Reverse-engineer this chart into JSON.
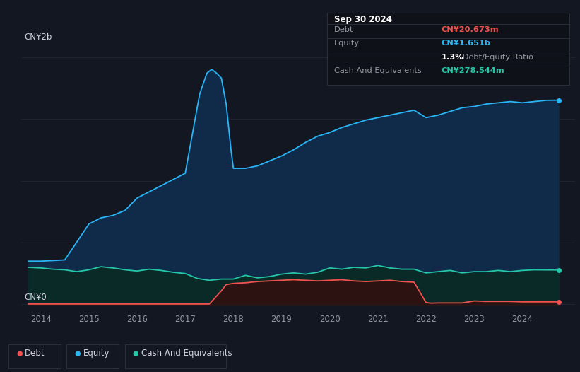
{
  "background_color": "#131722",
  "plot_bg_color": "#131722",
  "ylabel_top": "CN¥2b",
  "ylabel_zero": "CN¥0",
  "x_ticks": [
    2014,
    2015,
    2016,
    2017,
    2018,
    2019,
    2020,
    2021,
    2022,
    2023,
    2024
  ],
  "legend_items": [
    "Debt",
    "Equity",
    "Cash And Equivalents"
  ],
  "legend_colors": [
    "#ef5350",
    "#29b6f6",
    "#26c6a8"
  ],
  "info_box": {
    "title": "Sep 30 2024",
    "rows": [
      {
        "label": "Debt",
        "value": "CN¥20.673m",
        "value_color": "#ef5350"
      },
      {
        "label": "Equity",
        "value": "CN¥1.651b",
        "value_color": "#29b6f6"
      },
      {
        "label": "",
        "value_white": "1.3%",
        "value_gray": " Debt/Equity Ratio"
      },
      {
        "label": "Cash And Equivalents",
        "value": "CN¥278.544m",
        "value_color": "#26c6a8"
      }
    ]
  },
  "equity_color": "#29b6f6",
  "equity_fill": "#102a4a",
  "debt_color": "#ef5350",
  "debt_fill": "#2d1212",
  "cash_color": "#26c6a8",
  "cash_fill": "#0a2a28",
  "grid_color": "#232733",
  "text_color": "#9598a1",
  "ylim_min": -50000000,
  "ylim_max": 2100000000,
  "equity_x": [
    2013.75,
    2014.0,
    2014.5,
    2015.0,
    2015.25,
    2015.5,
    2015.75,
    2016.0,
    2016.25,
    2016.5,
    2016.75,
    2017.0,
    2017.15,
    2017.3,
    2017.45,
    2017.55,
    2017.65,
    2017.75,
    2017.85,
    2017.95,
    2018.0,
    2018.25,
    2018.5,
    2018.75,
    2019.0,
    2019.25,
    2019.5,
    2019.75,
    2020.0,
    2020.25,
    2020.5,
    2020.75,
    2021.0,
    2021.25,
    2021.5,
    2021.75,
    2022.0,
    2022.25,
    2022.5,
    2022.75,
    2023.0,
    2023.25,
    2023.5,
    2023.75,
    2024.0,
    2024.25,
    2024.5,
    2024.75
  ],
  "equity_y": [
    350000000,
    350000000,
    360000000,
    650000000,
    700000000,
    720000000,
    760000000,
    860000000,
    910000000,
    960000000,
    1010000000,
    1060000000,
    1380000000,
    1700000000,
    1870000000,
    1900000000,
    1870000000,
    1830000000,
    1620000000,
    1250000000,
    1100000000,
    1100000000,
    1120000000,
    1160000000,
    1200000000,
    1250000000,
    1310000000,
    1360000000,
    1390000000,
    1430000000,
    1460000000,
    1490000000,
    1510000000,
    1530000000,
    1550000000,
    1570000000,
    1510000000,
    1530000000,
    1560000000,
    1590000000,
    1600000000,
    1620000000,
    1630000000,
    1640000000,
    1630000000,
    1640000000,
    1650000000,
    1651000000
  ],
  "debt_x": [
    2013.75,
    2014.0,
    2014.5,
    2015.0,
    2015.5,
    2016.0,
    2016.5,
    2017.0,
    2017.5,
    2017.75,
    2017.85,
    2018.0,
    2018.25,
    2018.5,
    2018.75,
    2019.0,
    2019.25,
    2019.5,
    2019.75,
    2020.0,
    2020.25,
    2020.5,
    2020.75,
    2021.0,
    2021.25,
    2021.5,
    2021.75,
    2022.0,
    2022.1,
    2022.25,
    2022.5,
    2022.75,
    2023.0,
    2023.25,
    2023.5,
    2023.75,
    2024.0,
    2024.25,
    2024.5,
    2024.75
  ],
  "debt_y": [
    3000000,
    3000000,
    3000000,
    3000000,
    3000000,
    3000000,
    3000000,
    3000000,
    3000000,
    110000000,
    160000000,
    170000000,
    175000000,
    185000000,
    190000000,
    195000000,
    200000000,
    195000000,
    190000000,
    195000000,
    200000000,
    190000000,
    185000000,
    190000000,
    195000000,
    185000000,
    180000000,
    15000000,
    10000000,
    12000000,
    12000000,
    12000000,
    28000000,
    24000000,
    24000000,
    24000000,
    20673000,
    20673000,
    20673000,
    20673000
  ],
  "cash_x": [
    2013.75,
    2014.0,
    2014.25,
    2014.5,
    2014.75,
    2015.0,
    2015.25,
    2015.5,
    2015.75,
    2016.0,
    2016.25,
    2016.5,
    2016.75,
    2017.0,
    2017.25,
    2017.5,
    2017.75,
    2018.0,
    2018.25,
    2018.5,
    2018.75,
    2019.0,
    2019.25,
    2019.5,
    2019.75,
    2020.0,
    2020.25,
    2020.5,
    2020.75,
    2021.0,
    2021.25,
    2021.5,
    2021.75,
    2022.0,
    2022.25,
    2022.5,
    2022.75,
    2023.0,
    2023.25,
    2023.5,
    2023.75,
    2024.0,
    2024.25,
    2024.5,
    2024.75
  ],
  "cash_y": [
    300000000,
    295000000,
    285000000,
    280000000,
    265000000,
    280000000,
    305000000,
    295000000,
    280000000,
    270000000,
    285000000,
    275000000,
    260000000,
    250000000,
    210000000,
    195000000,
    205000000,
    205000000,
    235000000,
    215000000,
    225000000,
    245000000,
    255000000,
    245000000,
    260000000,
    295000000,
    285000000,
    300000000,
    295000000,
    315000000,
    295000000,
    285000000,
    285000000,
    255000000,
    265000000,
    275000000,
    255000000,
    265000000,
    265000000,
    275000000,
    265000000,
    275000000,
    280000000,
    279000000,
    278544000
  ]
}
